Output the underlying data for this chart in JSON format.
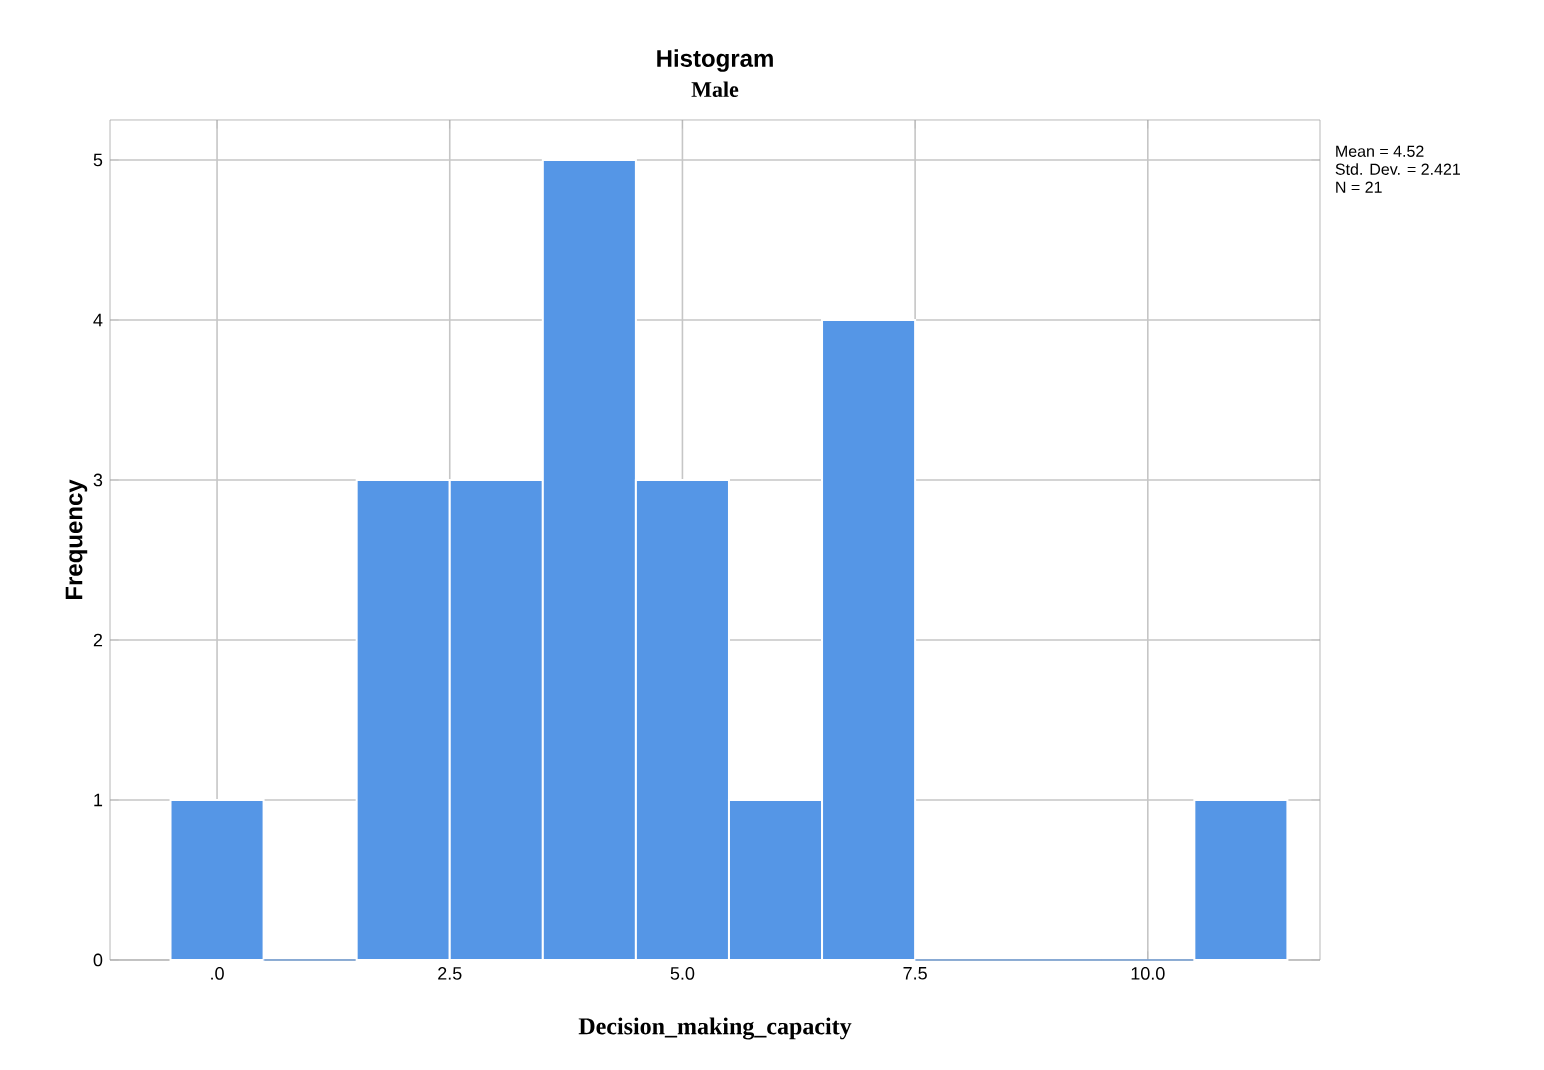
{
  "chart_data": {
    "type": "histogram",
    "title": "Histogram",
    "subtitle": "Male",
    "xlabel": "Decision_making_capacity",
    "ylabel": "Frequency",
    "bins": [
      -0.5,
      0.5,
      1.5,
      2.5,
      3.5,
      4.5,
      5.5,
      6.5,
      7.5,
      8.5,
      9.5,
      10.5,
      11.5
    ],
    "values": [
      1,
      0,
      3,
      3,
      5,
      3,
      1,
      4,
      0,
      0,
      0,
      1
    ],
    "color": "#5596e6",
    "xlim": [
      -1.15,
      11.85
    ],
    "ylim": [
      0,
      5.25
    ],
    "xticks": [
      {
        "value": 0,
        "label": ".0"
      },
      {
        "value": 2.5,
        "label": "2.5"
      },
      {
        "value": 5,
        "label": "5.0"
      },
      {
        "value": 7.5,
        "label": "7.5"
      },
      {
        "value": 10,
        "label": "10.0"
      }
    ],
    "yticks": [
      0,
      1,
      2,
      3,
      4,
      5
    ],
    "grid": true,
    "annotations": [
      "Mean = 4.52",
      "Std. Dev. = 2.421",
      "N = 21"
    ]
  }
}
